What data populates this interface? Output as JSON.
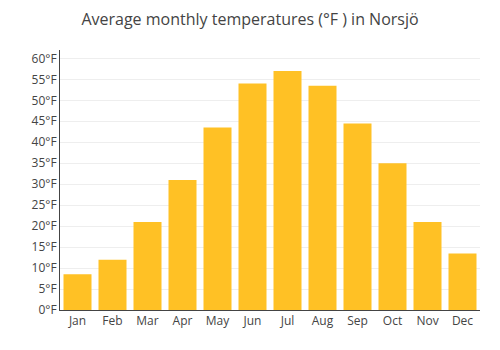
{
  "chart_data": {
    "type": "bar",
    "title": "Average monthly temperatures (°F ) in Norsjö",
    "categories": [
      "Jan",
      "Feb",
      "Mar",
      "Apr",
      "May",
      "Jun",
      "Jul",
      "Aug",
      "Sep",
      "Oct",
      "Nov",
      "Dec"
    ],
    "values": [
      8.5,
      12.0,
      21.0,
      31.0,
      43.5,
      54.0,
      57.0,
      53.5,
      44.5,
      35.0,
      21.0,
      13.5
    ],
    "color": "#FFC125",
    "ylim": [
      0,
      62
    ],
    "yticks": [
      {
        "value": 0,
        "label": "0°F"
      },
      {
        "value": 5,
        "label": "5°F"
      },
      {
        "value": 10,
        "label": "10°F"
      },
      {
        "value": 15,
        "label": "15°F"
      },
      {
        "value": 20,
        "label": "20°F"
      },
      {
        "value": 25,
        "label": "25°F"
      },
      {
        "value": 30,
        "label": "30°F"
      },
      {
        "value": 35,
        "label": "35°F"
      },
      {
        "value": 40,
        "label": "40°F"
      },
      {
        "value": 45,
        "label": "45°F"
      },
      {
        "value": 50,
        "label": "50°F"
      },
      {
        "value": 55,
        "label": "55°F"
      },
      {
        "value": 60,
        "label": "60°F"
      }
    ],
    "grid": true
  }
}
